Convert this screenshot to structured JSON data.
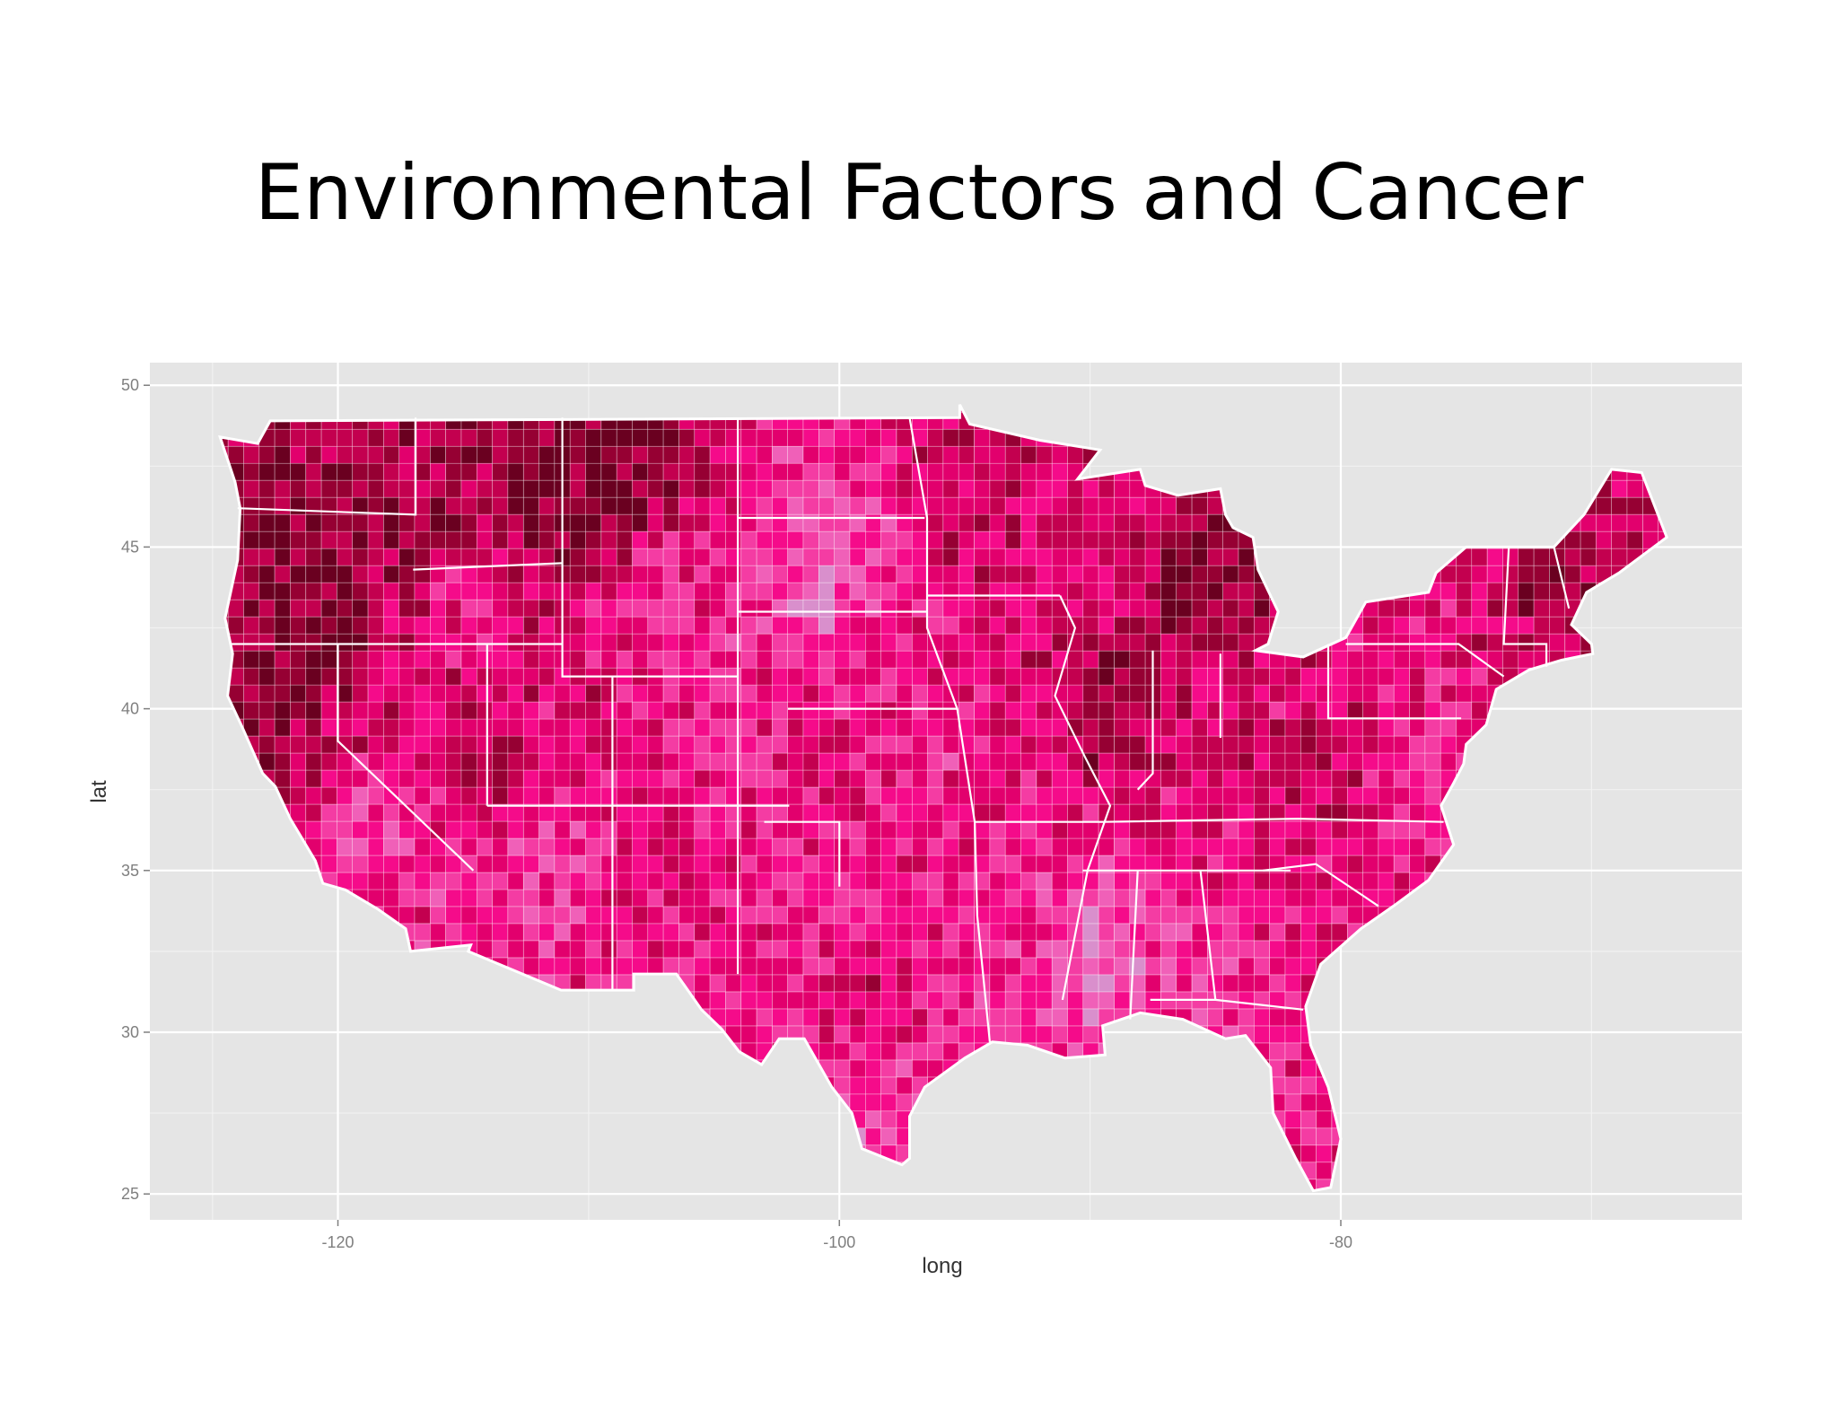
{
  "slide": {
    "title": "Environmental Factors and Cancer"
  },
  "chart_data": {
    "type": "choropleth",
    "geography": "contiguous United States, county level",
    "xlabel": "long",
    "ylabel": "lat",
    "x_ticks": [
      "-120",
      "-100",
      "-80"
    ],
    "y_ticks": [
      "25",
      "30",
      "35",
      "40",
      "45",
      "50"
    ],
    "xlim": [
      -127.5,
      -64
    ],
    "ylim": [
      24.2,
      50.7
    ],
    "grid": true,
    "legend": "none",
    "panel_background": "#e5e5e5",
    "border_color": "#ffffff",
    "color_scale": [
      "#e8c2e0",
      "#d98fcc",
      "#f060b8",
      "#f43ca3",
      "#f50b8a",
      "#e2006d",
      "#c3004f",
      "#960033",
      "#6a0020"
    ],
    "regional_levels": [
      {
        "region": "Pacific Northwest coast",
        "level": 7
      },
      {
        "region": "Northern Rockies",
        "level": 7
      },
      {
        "region": "Northern Plains",
        "level": 3
      },
      {
        "region": "Upper Midwest",
        "level": 5
      },
      {
        "region": "Michigan",
        "level": 7
      },
      {
        "region": "Southwest",
        "level": 3
      },
      {
        "region": "Texas",
        "level": 4
      },
      {
        "region": "Southeast",
        "level": 3
      },
      {
        "region": "Florida",
        "level": 4
      },
      {
        "region": "Northeast",
        "level": 5
      }
    ]
  }
}
